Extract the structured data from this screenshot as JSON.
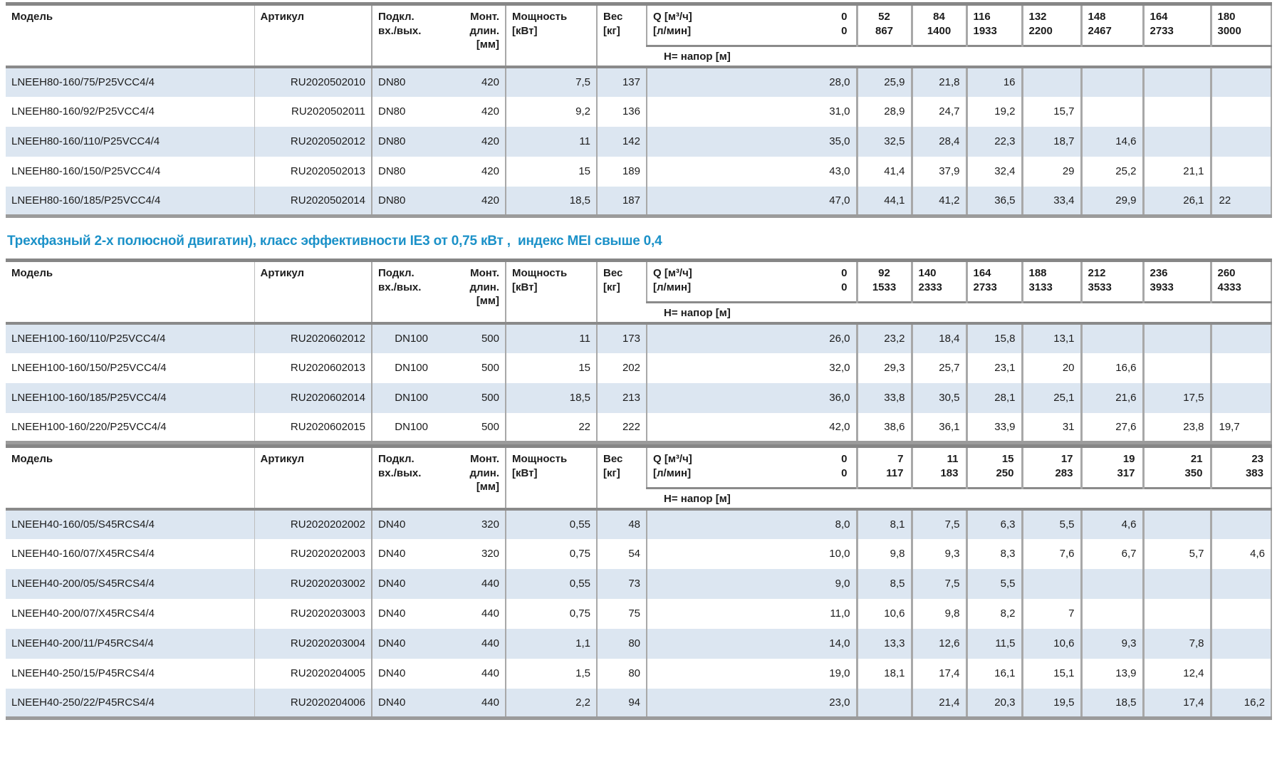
{
  "section_heading": "Трехфазный 2-х полюсной двигатин), класс эффективности IE3 от 0,75 кВт ,  индекс MEI свыше 0,4",
  "colors": {
    "heading_blue": "#1b91c8",
    "row_alt_blue": "#dce6f1",
    "grid_line": "#a8a8a8",
    "grid_line_heavy": "#8a8a8a",
    "text": "#1c1c1c"
  },
  "headers": {
    "model": "Модель",
    "article": "Артикул",
    "conn_line1": "Подкл.",
    "conn_line2": "вх./вых.",
    "mount_line1": "Монт.",
    "mount_line2": "длин.",
    "mount_line3": "[мм]",
    "power_line1": "Мощность",
    "power_line2": "[кВт]",
    "weight_line1": "Вес",
    "weight_line2": "[кг]",
    "q_line1": "Q [м³/ч]",
    "q_line1_zero": "0",
    "q_line2": "[л/мин]",
    "q_line2_zero": "0",
    "head_row_label": "H= напор [м]"
  },
  "tables": [
    {
      "name": "LNEEH80",
      "dn_align": "left",
      "last_col_align": "left",
      "flow_header_align": [
        "center",
        "center",
        "left",
        "left",
        "left",
        "left",
        "left"
      ],
      "flow_cols": [
        [
          "52",
          "867"
        ],
        [
          "84",
          "1400"
        ],
        [
          "116",
          "1933"
        ],
        [
          "132",
          "2200"
        ],
        [
          "148",
          "2467"
        ],
        [
          "164",
          "2733"
        ],
        [
          "180",
          "3000"
        ]
      ],
      "rows": [
        {
          "model": "LNEEH80-160/75/P25VCC4/4",
          "article": "RU2020502010",
          "dn": "DN80",
          "mount": "420",
          "power": "7,5",
          "weight": "137",
          "h": [
            "28,0",
            "25,9",
            "21,8",
            "16",
            "",
            "",
            "",
            ""
          ]
        },
        {
          "model": "LNEEH80-160/92/P25VCC4/4",
          "article": "RU2020502011",
          "dn": "DN80",
          "mount": "420",
          "power": "9,2",
          "weight": "136",
          "h": [
            "31,0",
            "28,9",
            "24,7",
            "19,2",
            "15,7",
            "",
            "",
            ""
          ]
        },
        {
          "model": "LNEEH80-160/110/P25VCC4/4",
          "article": "RU2020502012",
          "dn": "DN80",
          "mount": "420",
          "power": "11",
          "weight": "142",
          "h": [
            "35,0",
            "32,5",
            "28,4",
            "22,3",
            "18,7",
            "14,6",
            "",
            ""
          ]
        },
        {
          "model": "LNEEH80-160/150/P25VCC4/4",
          "article": "RU2020502013",
          "dn": "DN80",
          "mount": "420",
          "power": "15",
          "weight": "189",
          "h": [
            "43,0",
            "41,4",
            "37,9",
            "32,4",
            "29",
            "25,2",
            "21,1",
            ""
          ]
        },
        {
          "model": "LNEEH80-160/185/P25VCC4/4",
          "article": "RU2020502014",
          "dn": "DN80",
          "mount": "420",
          "power": "18,5",
          "weight": "187",
          "h": [
            "47,0",
            "44,1",
            "41,2",
            "36,5",
            "33,4",
            "29,9",
            "26,1",
            "22"
          ]
        }
      ]
    },
    {
      "name": "LNEEH100",
      "dn_align": "right",
      "last_col_align": "left",
      "flow_header_align": [
        "center",
        "left",
        "left",
        "left",
        "left",
        "left",
        "left"
      ],
      "flow_cols": [
        [
          "92",
          "1533"
        ],
        [
          "140",
          "2333"
        ],
        [
          "164",
          "2733"
        ],
        [
          "188",
          "3133"
        ],
        [
          "212",
          "3533"
        ],
        [
          "236",
          "3933"
        ],
        [
          "260",
          "4333"
        ]
      ],
      "rows": [
        {
          "model": "LNEEH100-160/110/P25VCC4/4",
          "article": "RU2020602012",
          "dn": "DN100",
          "mount": "500",
          "power": "11",
          "weight": "173",
          "h": [
            "26,0",
            "23,2",
            "18,4",
            "15,8",
            "13,1",
            "",
            "",
            ""
          ]
        },
        {
          "model": "LNEEH100-160/150/P25VCC4/4",
          "article": "RU2020602013",
          "dn": "DN100",
          "mount": "500",
          "power": "15",
          "weight": "202",
          "h": [
            "32,0",
            "29,3",
            "25,7",
            "23,1",
            "20",
            "16,6",
            "",
            ""
          ]
        },
        {
          "model": "LNEEH100-160/185/P25VCC4/4",
          "article": "RU2020602014",
          "dn": "DN100",
          "mount": "500",
          "power": "18,5",
          "weight": "213",
          "h": [
            "36,0",
            "33,8",
            "30,5",
            "28,1",
            "25,1",
            "21,6",
            "17,5",
            ""
          ]
        },
        {
          "model": "LNEEH100-160/220/P25VCC4/4",
          "article": "RU2020602015",
          "dn": "DN100",
          "mount": "500",
          "power": "22",
          "weight": "222",
          "h": [
            "42,0",
            "38,6",
            "36,1",
            "33,9",
            "31",
            "27,6",
            "23,8",
            "19,7"
          ]
        }
      ]
    },
    {
      "name": "LNEEH40",
      "dn_align": "left",
      "last_col_align": "right",
      "flow_header_align": [
        "right",
        "right",
        "right",
        "right",
        "right",
        "right",
        "right"
      ],
      "flow_cols": [
        [
          "7",
          "117"
        ],
        [
          "11",
          "183"
        ],
        [
          "15",
          "250"
        ],
        [
          "17",
          "283"
        ],
        [
          "19",
          "317"
        ],
        [
          "21",
          "350"
        ],
        [
          "23",
          "383"
        ]
      ],
      "rows": [
        {
          "model": "LNEEH40-160/05/S45RCS4/4",
          "article": "RU2020202002",
          "dn": "DN40",
          "mount": "320",
          "power": "0,55",
          "weight": "48",
          "h": [
            "8,0",
            "8,1",
            "7,5",
            "6,3",
            "5,5",
            "4,6",
            "",
            ""
          ]
        },
        {
          "model": "LNEEH40-160/07/X45RCS4/4",
          "article": "RU2020202003",
          "dn": "DN40",
          "mount": "320",
          "power": "0,75",
          "weight": "54",
          "h": [
            "10,0",
            "9,8",
            "9,3",
            "8,3",
            "7,6",
            "6,7",
            "5,7",
            "4,6"
          ]
        },
        {
          "model": "LNEEH40-200/05/S45RCS4/4",
          "article": "RU2020203002",
          "dn": "DN40",
          "mount": "440",
          "power": "0,55",
          "weight": "73",
          "h": [
            "9,0",
            "8,5",
            "7,5",
            "5,5",
            "",
            "",
            "",
            ""
          ]
        },
        {
          "model": "LNEEH40-200/07/X45RCS4/4",
          "article": "RU2020203003",
          "dn": "DN40",
          "mount": "440",
          "power": "0,75",
          "weight": "75",
          "h": [
            "11,0",
            "10,6",
            "9,8",
            "8,2",
            "7",
            "",
            "",
            ""
          ]
        },
        {
          "model": "LNEEH40-200/11/P45RCS4/4",
          "article": "RU2020203004",
          "dn": "DN40",
          "mount": "440",
          "power": "1,1",
          "weight": "80",
          "h": [
            "14,0",
            "13,3",
            "12,6",
            "11,5",
            "10,6",
            "9,3",
            "7,8",
            ""
          ]
        },
        {
          "model": "LNEEH40-250/15/P45RCS4/4",
          "article": "RU2020204005",
          "dn": "DN40",
          "mount": "440",
          "power": "1,5",
          "weight": "80",
          "h": [
            "19,0",
            "18,1",
            "17,4",
            "16,1",
            "15,1",
            "13,9",
            "12,4",
            ""
          ]
        },
        {
          "model": "LNEEH40-250/22/P45RCS4/4",
          "article": "RU2020204006",
          "dn": "DN40",
          "mount": "440",
          "power": "2,2",
          "weight": "94",
          "h": [
            "23,0",
            "",
            "21,4",
            "20,3",
            "19,5",
            "18,5",
            "17,4",
            "16,2"
          ]
        }
      ]
    }
  ]
}
